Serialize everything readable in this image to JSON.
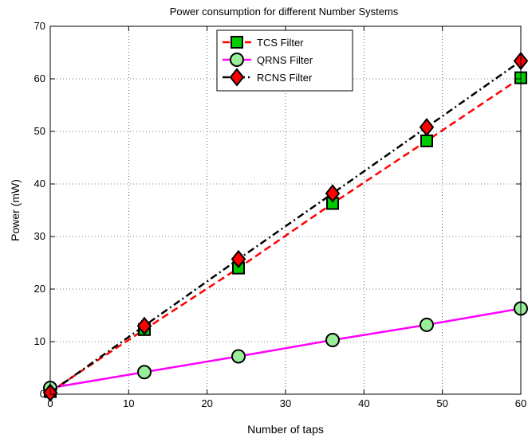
{
  "chart_data": {
    "type": "line",
    "title": "Power consumption for different Number Systems",
    "xlabel": "Number of taps",
    "ylabel": "Power (mW)",
    "xlim": [
      0,
      60
    ],
    "ylim": [
      0,
      70
    ],
    "xticks": [
      0,
      10,
      20,
      30,
      40,
      50,
      60
    ],
    "yticks": [
      0,
      10,
      20,
      30,
      40,
      50,
      60,
      70
    ],
    "grid": true,
    "legend_position": "top-center",
    "series": [
      {
        "name": "TCS Filter",
        "color": "#ff0000",
        "line_style": "dashed",
        "marker": "square",
        "marker_color": "#00cc00",
        "x": [
          0,
          12,
          24,
          36,
          48,
          60
        ],
        "y": [
          0.5,
          12.3,
          24.0,
          36.3,
          48.2,
          60.2
        ]
      },
      {
        "name": "QRNS Filter",
        "color": "#ff00ff",
        "line_style": "solid",
        "marker": "circle",
        "marker_color": "#99ee99",
        "x": [
          0,
          12,
          24,
          36,
          48,
          60
        ],
        "y": [
          1.2,
          4.2,
          7.2,
          10.3,
          13.2,
          16.3
        ]
      },
      {
        "name": "RCNS Filter",
        "color": "#000000",
        "line_style": "dashdot",
        "marker": "diamond",
        "marker_color": "#ff0000",
        "x": [
          0,
          12,
          24,
          36,
          48,
          60
        ],
        "y": [
          0.3,
          13.0,
          25.7,
          38.2,
          50.8,
          63.4
        ]
      }
    ]
  }
}
